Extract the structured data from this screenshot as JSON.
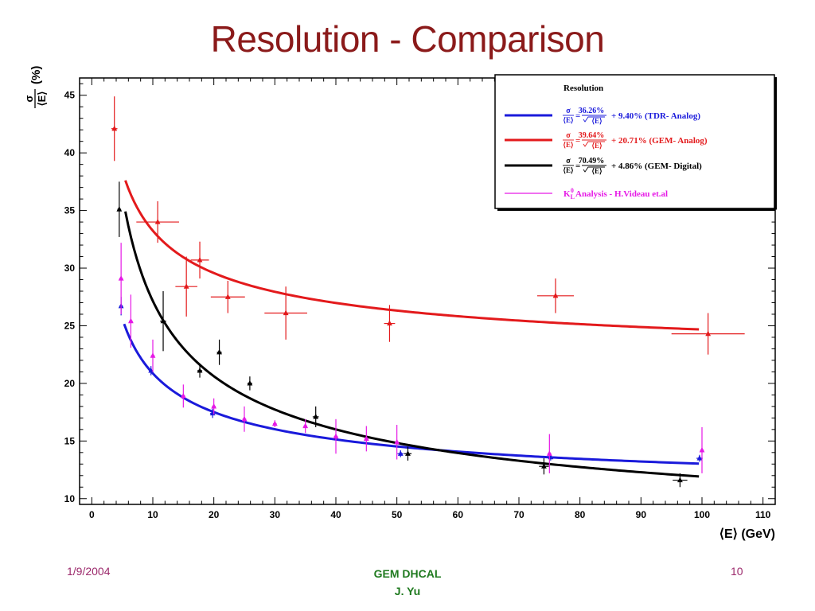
{
  "slide": {
    "title": "Resolution - Comparison",
    "footer_date": "1/9/2004",
    "footer_center_line1": "GEM DHCAL",
    "footer_center_line2": "J. Yu",
    "footer_page": "10"
  },
  "chart_data": {
    "type": "scatter",
    "title": "",
    "xlabel": "⟨E⟩ (GeV)",
    "ylabel_numerator": "σ",
    "ylabel_denominator": "⟨E⟩",
    "ylabel_unit": "(%)",
    "xlim": [
      -2,
      112
    ],
    "ylim": [
      9.5,
      46.5
    ],
    "x_ticks": [
      0,
      10,
      20,
      30,
      40,
      50,
      60,
      70,
      80,
      90,
      100,
      110
    ],
    "y_ticks": [
      10,
      15,
      20,
      25,
      30,
      35,
      40,
      45
    ],
    "grid": false,
    "legend": {
      "placement": "top-right",
      "header": "Resolution",
      "entries": [
        {
          "series": "tdr",
          "prefix_num": "σ",
          "prefix_den": "⟨E⟩",
          "eq": "=",
          "stoch": "36.26%",
          "sqrt_arg": "⟨E⟩",
          "rest": "+ 9.40% (TDR- Analog)"
        },
        {
          "series": "gem_analog",
          "prefix_num": "σ",
          "prefix_den": "⟨E⟩",
          "eq": "=",
          "stoch": "39.64%",
          "sqrt_arg": "⟨E⟩",
          "rest": "+ 20.71% (GEM- Analog)"
        },
        {
          "series": "gem_digital",
          "prefix_num": "σ",
          "prefix_den": "⟨E⟩",
          "eq": "=",
          "stoch": "70.49%",
          "sqrt_arg": "⟨E⟩",
          "rest": "+ 4.86% (GEM- Digital)"
        },
        {
          "series": "videau",
          "text_k": "K",
          "text_sub": "L",
          "text_sup": "0",
          "text_rest": " Analysis - H.Videau et.al"
        }
      ]
    },
    "series": [
      {
        "id": "gem_analog",
        "color": "#e31a1c",
        "fit": {
          "a": 39.64,
          "b": 20.71,
          "xmin": 5.5,
          "xmax": 99.5
        },
        "points": [
          {
            "x": 3.7,
            "y": 42.1,
            "ex": 0.5,
            "ey": 2.8
          },
          {
            "x": 10.8,
            "y": 34.0,
            "ex": 3.5,
            "ey": 1.8
          },
          {
            "x": 17.7,
            "y": 30.7,
            "ex": 1.5,
            "ey": 1.6
          },
          {
            "x": 15.5,
            "y": 28.4,
            "ex": 1.8,
            "ey": 2.6
          },
          {
            "x": 22.3,
            "y": 27.5,
            "ex": 2.8,
            "ey": 1.4
          },
          {
            "x": 31.8,
            "y": 26.1,
            "ex": 3.5,
            "ey": 2.3
          },
          {
            "x": 48.8,
            "y": 25.2,
            "ex": 0.9,
            "ey": 1.6
          },
          {
            "x": 76.0,
            "y": 27.6,
            "ex": 3.0,
            "ey": 1.5
          },
          {
            "x": 101.0,
            "y": 24.3,
            "ex": 6.0,
            "ey": 1.8
          }
        ]
      },
      {
        "id": "tdr",
        "color": "#1a1adb",
        "fit": {
          "a": 36.26,
          "b": 9.4,
          "xmin": 5.3,
          "xmax": 99.5
        },
        "points": [
          {
            "x": 4.8,
            "y": 26.7,
            "ex": 0.3,
            "ey": 0.8
          },
          {
            "x": 9.7,
            "y": 21.1,
            "ex": 0.3,
            "ey": 0.4
          },
          {
            "x": 19.8,
            "y": 17.4,
            "ex": 0.4,
            "ey": 0.4
          },
          {
            "x": 50.6,
            "y": 13.9,
            "ex": 0.5,
            "ey": 0.3
          },
          {
            "x": 75.2,
            "y": 13.6,
            "ex": 0.6,
            "ey": 0.3
          },
          {
            "x": 99.6,
            "y": 13.5,
            "ex": 0.5,
            "ey": 0.3
          }
        ]
      },
      {
        "id": "gem_digital",
        "color": "#000000",
        "fit": {
          "a": 70.49,
          "b": 4.86,
          "xmin": 5.5,
          "xmax": 99.5
        },
        "points": [
          {
            "x": 4.5,
            "y": 35.1,
            "ex": 0.3,
            "ey": 2.4
          },
          {
            "x": 11.7,
            "y": 25.4,
            "ex": 0.5,
            "ey": 2.6
          },
          {
            "x": 17.7,
            "y": 21.1,
            "ex": 0.4,
            "ey": 0.6
          },
          {
            "x": 20.9,
            "y": 22.7,
            "ex": 0.4,
            "ey": 1.1
          },
          {
            "x": 25.9,
            "y": 20.0,
            "ex": 0.4,
            "ey": 0.6
          },
          {
            "x": 36.7,
            "y": 17.1,
            "ex": 0.5,
            "ey": 0.9
          },
          {
            "x": 51.8,
            "y": 13.9,
            "ex": 0.6,
            "ey": 0.6
          },
          {
            "x": 74.1,
            "y": 12.8,
            "ex": 0.8,
            "ey": 0.7
          },
          {
            "x": 96.4,
            "y": 11.6,
            "ex": 1.2,
            "ey": 0.6
          }
        ]
      },
      {
        "id": "videau",
        "color": "#e619e6",
        "points": [
          {
            "x": 4.8,
            "y": 29.1,
            "ex": 0.3,
            "ey": 3.1
          },
          {
            "x": 6.4,
            "y": 25.4,
            "ex": 0.3,
            "ey": 2.3
          },
          {
            "x": 10.0,
            "y": 22.4,
            "ex": 0.3,
            "ey": 1.4
          },
          {
            "x": 15.0,
            "y": 18.9,
            "ex": 0.3,
            "ey": 1.0
          },
          {
            "x": 20.0,
            "y": 18.0,
            "ex": 0.3,
            "ey": 0.7
          },
          {
            "x": 25.0,
            "y": 16.9,
            "ex": 0.3,
            "ey": 1.1
          },
          {
            "x": 30.0,
            "y": 16.5,
            "ex": 0.3,
            "ey": 0.3
          },
          {
            "x": 35.0,
            "y": 16.3,
            "ex": 0.3,
            "ey": 0.6
          },
          {
            "x": 40.0,
            "y": 15.4,
            "ex": 0.3,
            "ey": 1.5
          },
          {
            "x": 45.0,
            "y": 15.2,
            "ex": 0.3,
            "ey": 1.1
          },
          {
            "x": 50.0,
            "y": 14.9,
            "ex": 0.3,
            "ey": 1.5
          },
          {
            "x": 75.0,
            "y": 13.9,
            "ex": 0.3,
            "ey": 1.7
          },
          {
            "x": 100.0,
            "y": 14.2,
            "ex": 0.3,
            "ey": 2.0
          }
        ]
      }
    ]
  }
}
